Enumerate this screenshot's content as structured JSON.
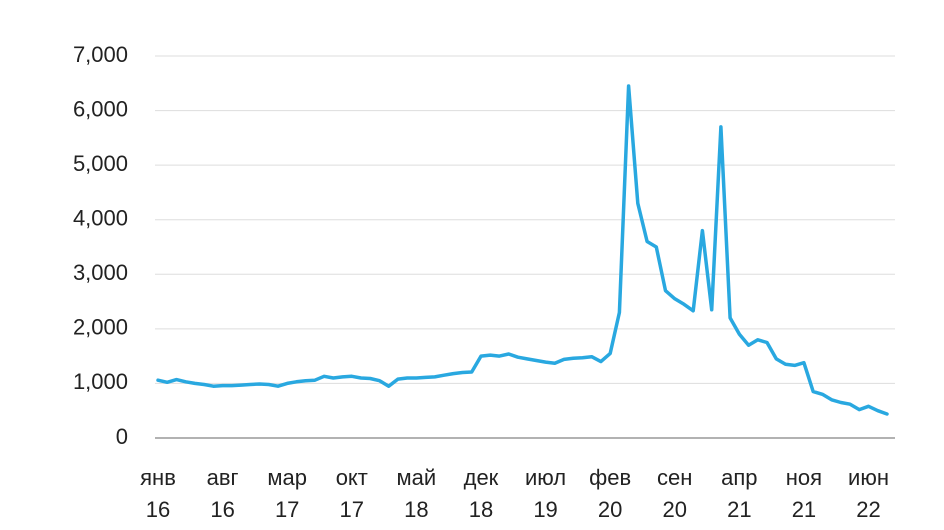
{
  "chart_data": {
    "type": "line",
    "categories": [
      "янв\n16",
      null,
      null,
      null,
      null,
      null,
      null,
      "авг\n16",
      null,
      null,
      null,
      null,
      null,
      null,
      "мар\n17",
      null,
      null,
      null,
      null,
      null,
      null,
      "окт\n17",
      null,
      null,
      null,
      null,
      null,
      null,
      "май\n18",
      null,
      null,
      null,
      null,
      null,
      null,
      "дек\n18",
      null,
      null,
      null,
      null,
      null,
      null,
      "июл\n19",
      null,
      null,
      null,
      null,
      null,
      null,
      "фев\n20",
      null,
      null,
      null,
      null,
      null,
      null,
      "сен\n20",
      null,
      null,
      null,
      null,
      null,
      null,
      "апр\n21",
      null,
      null,
      null,
      null,
      null,
      null,
      "ноя\n21",
      null,
      null,
      null,
      null,
      null,
      null,
      "июн\n22",
      null,
      null
    ],
    "values": [
      1060,
      1020,
      1070,
      1030,
      1000,
      980,
      950,
      960,
      960,
      970,
      980,
      990,
      980,
      950,
      1000,
      1030,
      1050,
      1060,
      1130,
      1100,
      1120,
      1130,
      1100,
      1090,
      1050,
      950,
      1080,
      1100,
      1100,
      1110,
      1120,
      1150,
      1180,
      1200,
      1210,
      1500,
      1520,
      1500,
      1540,
      1480,
      1450,
      1420,
      1390,
      1370,
      1440,
      1460,
      1470,
      1490,
      1400,
      1550,
      2300,
      6450,
      4300,
      3600,
      3500,
      2700,
      2550,
      2450,
      2330,
      3800,
      2350,
      5700,
      2200,
      1900,
      1700,
      1800,
      1750,
      1450,
      1350,
      1330,
      1380,
      850,
      800,
      700,
      650,
      620,
      520,
      580,
      500,
      440
    ],
    "color": "#29a8e0",
    "ylim": [
      0,
      7000
    ],
    "yticks": [
      0,
      {
        "value": 1000,
        "label": "1,000"
      },
      {
        "value": 2000,
        "label": "2,000"
      },
      {
        "value": 3000,
        "label": "3,000"
      },
      {
        "value": 4000,
        "label": "4,000"
      },
      {
        "value": 5000,
        "label": "5,000"
      },
      {
        "value": 6000,
        "label": "6,000"
      },
      {
        "value": 7000,
        "label": "7,000"
      }
    ],
    "grid": true
  }
}
